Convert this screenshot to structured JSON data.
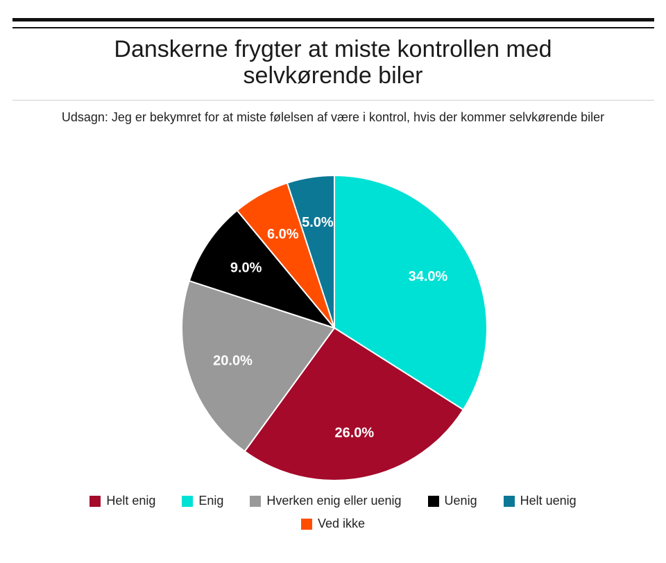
{
  "chart_data": {
    "type": "pie",
    "title_lines": [
      "Danskerne frygter at miste kontrollen med",
      "selvkørende biler"
    ],
    "subtitle": "Udsagn: Jeg er bekymret for at miste følelsen af være i kontrol, hvis der kommer selvkørende biler",
    "slices": [
      {
        "name": "Enig",
        "value": 34.0,
        "label": "34.0%",
        "color": "#00e1d6"
      },
      {
        "name": "Helt enig",
        "value": 26.0,
        "label": "26.0%",
        "color": "#a50a2b"
      },
      {
        "name": "Hverken enig eller uenig",
        "value": 20.0,
        "label": "20.0%",
        "color": "#999999"
      },
      {
        "name": "Uenig",
        "value": 9.0,
        "label": "9.0%",
        "color": "#000000"
      },
      {
        "name": "Ved ikke",
        "value": 6.0,
        "label": "6.0%",
        "color": "#ff4e00"
      },
      {
        "name": "Helt uenig",
        "value": 5.0,
        "label": "5.0%",
        "color": "#0c7896"
      }
    ],
    "legend": {
      "placement": "bottom",
      "rows": [
        [
          {
            "name": "Helt enig",
            "color": "#a50a2b"
          },
          {
            "name": "Enig",
            "color": "#00e1d6"
          },
          {
            "name": "Hverken enig eller uenig",
            "color": "#999999"
          },
          {
            "name": "Uenig",
            "color": "#000000"
          },
          {
            "name": "Helt uenig",
            "color": "#0c7896"
          }
        ],
        [
          {
            "name": "Ved ikke",
            "color": "#ff4e00"
          }
        ]
      ]
    }
  }
}
